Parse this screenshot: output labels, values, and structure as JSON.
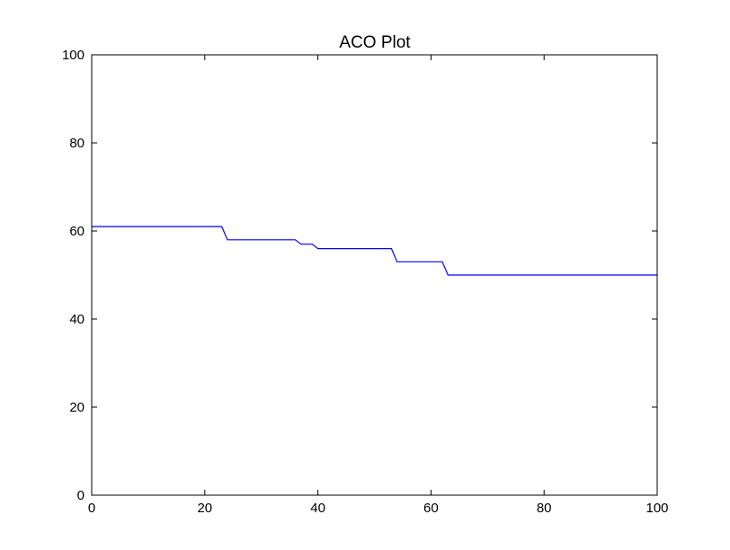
{
  "chart_data": {
    "type": "line",
    "title": "ACO Plot",
    "xlabel": "",
    "ylabel": "",
    "xlim": [
      0,
      100
    ],
    "ylim": [
      0,
      100
    ],
    "xticks": [
      0,
      20,
      40,
      60,
      80,
      100
    ],
    "yticks": [
      0,
      20,
      40,
      60,
      80,
      100
    ],
    "grid": false,
    "series": [
      {
        "color": "#0000ff",
        "x": [
          0,
          23,
          24,
          36,
          37,
          39,
          40,
          53,
          54,
          62,
          63,
          100
        ],
        "y": [
          61,
          61,
          58,
          58,
          57,
          57,
          56,
          56,
          53,
          53,
          50,
          50
        ]
      }
    ]
  }
}
